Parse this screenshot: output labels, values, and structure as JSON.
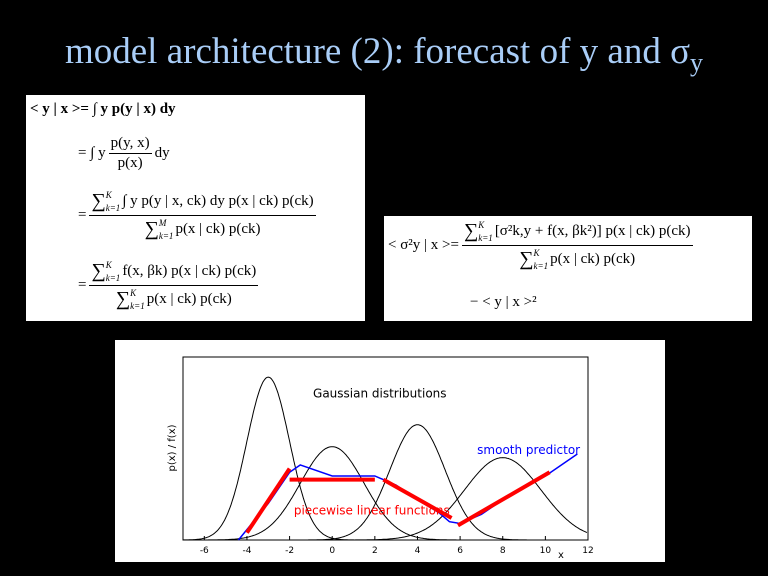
{
  "title": {
    "main": "model architecture (2): forecast of y and σ",
    "sub": "y"
  },
  "eq1": {
    "l1": "< y | x >= ∫ y p(y | x) dy",
    "l2_pre": "= ∫ y",
    "l2_num": "p(y, x)",
    "l2_den": "p(x)",
    "l2_post": "dy",
    "l3_pre": "=",
    "sum_sym": "∑",
    "k1": "k=1",
    "K": "K",
    "M": "M",
    "l3_num": "∫ y p(y | x, ck) dy p(x | ck) p(ck)",
    "l3_den": "p(x | ck) p(ck)",
    "l4_pre": "=",
    "l4_num": "f(x, βk) p(x | ck) p(ck)",
    "l4_den": "p(x | ck) p(ck)"
  },
  "eq2": {
    "lhs": "< σ²y | x >=",
    "num": "[σ²k,y + f(x, βk²)] p(x | ck) p(ck)",
    "den": "p(x | ck) p(ck)",
    "l2": "− < y | x >²"
  },
  "chart_data": {
    "type": "line",
    "xlabel": "x",
    "ylabel": "p(x) / f(x)",
    "xlim": [
      -7,
      12
    ],
    "ylim": [
      0,
      1
    ],
    "xticks": [
      -6,
      -4,
      -2,
      0,
      2,
      4,
      6,
      8,
      10,
      12
    ],
    "grid": false,
    "gaussians": [
      {
        "mean": -3,
        "sd": 1.0,
        "peak": 0.89
      },
      {
        "mean": 0,
        "sd": 1.5,
        "peak": 0.51
      },
      {
        "mean": 4,
        "sd": 1.3,
        "peak": 0.63
      },
      {
        "mean": 8,
        "sd": 1.8,
        "peak": 0.45
      }
    ],
    "piecewise": [
      [
        [
          -4,
          0.04
        ],
        [
          -2,
          0.39
        ]
      ],
      [
        [
          -2,
          0.33
        ],
        [
          2,
          0.33
        ]
      ],
      [
        [
          2.4,
          0.33
        ],
        [
          5.6,
          0.12
        ]
      ],
      [
        [
          5.9,
          0.08
        ],
        [
          10.2,
          0.37
        ]
      ]
    ],
    "smooth": {
      "x": [
        -4.4,
        -3,
        -2,
        -1.5,
        0,
        2,
        3,
        4,
        5,
        5.5,
        6,
        7,
        8,
        10,
        11.5
      ],
      "y": [
        0,
        0.2,
        0.37,
        0.41,
        0.35,
        0.35,
        0.3,
        0.22,
        0.15,
        0.1,
        0.09,
        0.14,
        0.22,
        0.35,
        0.47
      ]
    },
    "annotations": {
      "gauss": "Gaussian distributions",
      "smooth": "smooth predictor",
      "piecewise": "piecewise linear functions"
    },
    "colors": {
      "gauss": "#000000",
      "smooth": "#0000ff",
      "piecewise": "#ff0000"
    }
  }
}
